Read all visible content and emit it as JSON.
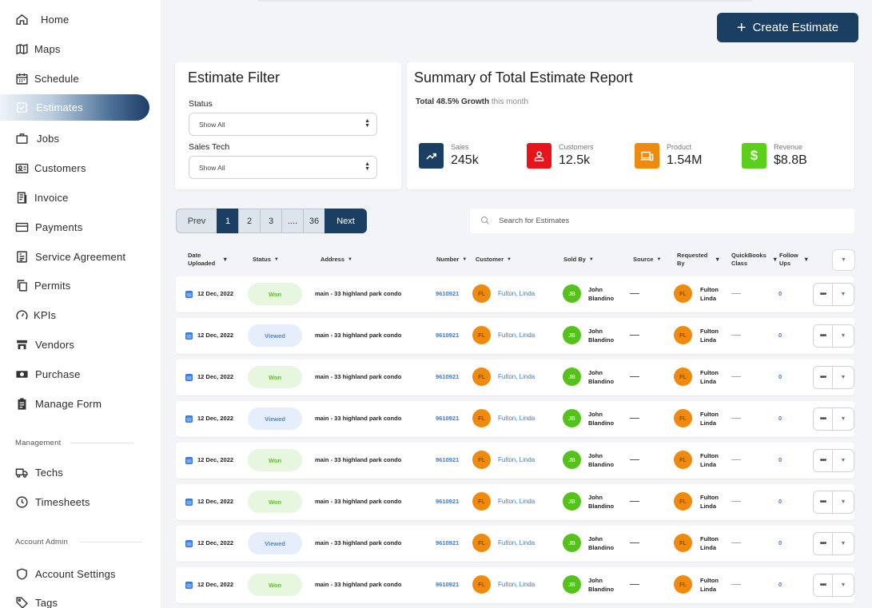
{
  "sidebar": {
    "items": [
      {
        "label": "Home",
        "icon": "home-icon"
      },
      {
        "label": "Maps",
        "icon": "map-icon"
      },
      {
        "label": "Schedule",
        "icon": "calendar-icon"
      },
      {
        "label": "Estimates",
        "icon": "estimate-icon",
        "active": true
      },
      {
        "label": "Jobs",
        "icon": "briefcase-icon"
      },
      {
        "label": "Customers",
        "icon": "id-card-icon"
      },
      {
        "label": "Invoice",
        "icon": "invoice-icon"
      },
      {
        "label": "Payments",
        "icon": "credit-card-icon"
      },
      {
        "label": "Service Agreement",
        "icon": "document-icon"
      },
      {
        "label": "Permits",
        "icon": "copy-icon"
      },
      {
        "label": "KPIs",
        "icon": "gauge-icon"
      },
      {
        "label": "Vendors",
        "icon": "store-icon"
      },
      {
        "label": "Purchase",
        "icon": "cash-icon"
      },
      {
        "label": "Manage Form",
        "icon": "clipboard-icon"
      }
    ],
    "management_title": "Management",
    "management_items": [
      {
        "label": "Techs",
        "icon": "truck-icon"
      },
      {
        "label": "Timesheets",
        "icon": "clock-icon"
      }
    ],
    "account_title": "Account Admin",
    "account_items": [
      {
        "label": "Account Settings",
        "icon": "shield-icon"
      },
      {
        "label": "Tags",
        "icon": "tag-icon"
      }
    ]
  },
  "header": {
    "create_button": "Create Estimate"
  },
  "filter": {
    "title": "Estimate Filter",
    "status_label": "Status",
    "status_value": "Show All",
    "tech_label": "Sales Tech",
    "tech_value": "Show All"
  },
  "summary": {
    "title": "Summary of Total Estimate Report",
    "growth_prefix": "Total 48.5% Growth",
    "growth_suffix": "this month",
    "stats": [
      {
        "label": "Sales",
        "value": "245k",
        "color": "#1b3f63",
        "icon": "trend-up-icon"
      },
      {
        "label": "Customers",
        "value": "12.5k",
        "color": "#e8141c",
        "icon": "user-icon"
      },
      {
        "label": "Product",
        "value": "1.54M",
        "color": "#f08a0c",
        "icon": "devices-icon"
      },
      {
        "label": "Revenue",
        "value": "$8.8B",
        "color": "#5ccf1c",
        "icon": "dollar-icon"
      }
    ]
  },
  "pagination": {
    "prev": "Prev",
    "pages": [
      "1",
      "2",
      "3",
      "....",
      "36"
    ],
    "active_page": "1",
    "next": "Next"
  },
  "search": {
    "placeholder": "Search for Estimates"
  },
  "table": {
    "headers": {
      "date_uploaded": "Date\nUploaded",
      "status": "Status",
      "address": "Address",
      "number": "Number",
      "customer": "Customer",
      "sold_by": "Sold By",
      "source": "Source",
      "requested_by": "Requested\nBy",
      "quickbooks_class": "QuickBooks\nClass",
      "follow_ups": "Follow\nUps"
    },
    "rows": [
      {
        "date": "12 Dec, 2022",
        "status": "Won",
        "address": "main - 33 highland park condo",
        "number": "9610921",
        "customer_initials": "FL",
        "customer": "Fulton, Linda",
        "sold_initials": "JB",
        "sold_first": "John",
        "sold_last": "Blandino",
        "source": "—",
        "req_initials": "FL",
        "req_first": "Fulton",
        "req_last": "Linda",
        "qb": "—",
        "follow": "0"
      },
      {
        "date": "12 Dec, 2022",
        "status": "Viewed",
        "address": "main - 33 highland park condo",
        "number": "9610921",
        "customer_initials": "FL",
        "customer": "Fulton, Linda",
        "sold_initials": "JB",
        "sold_first": "John",
        "sold_last": "Blandino",
        "source": "—",
        "req_initials": "FL",
        "req_first": "Fulton",
        "req_last": "Linda",
        "qb": "—",
        "follow": "0"
      },
      {
        "date": "12 Dec, 2022",
        "status": "Won",
        "address": "main - 33 highland park condo",
        "number": "9610921",
        "customer_initials": "FL",
        "customer": "Fulton, Linda",
        "sold_initials": "JB",
        "sold_first": "John",
        "sold_last": "Blandino",
        "source": "—",
        "req_initials": "FL",
        "req_first": "Fulton",
        "req_last": "Linda",
        "qb": "—",
        "follow": "0"
      },
      {
        "date": "12 Dec, 2022",
        "status": "Viewed",
        "address": "main - 33 highland park condo",
        "number": "9610921",
        "customer_initials": "FL",
        "customer": "Fulton, Linda",
        "sold_initials": "JB",
        "sold_first": "John",
        "sold_last": "Blandino",
        "source": "—",
        "req_initials": "FL",
        "req_first": "Fulton",
        "req_last": "Linda",
        "qb": "—",
        "follow": "0"
      },
      {
        "date": "12 Dec, 2022",
        "status": "Won",
        "address": "main - 33 highland park condo",
        "number": "9610921",
        "customer_initials": "FL",
        "customer": "Fulton, Linda",
        "sold_initials": "JB",
        "sold_first": "John",
        "sold_last": "Blandino",
        "source": "—",
        "req_initials": "FL",
        "req_first": "Fulton",
        "req_last": "Linda",
        "qb": "—",
        "follow": "0"
      },
      {
        "date": "12 Dec, 2022",
        "status": "Won",
        "address": "main - 33 highland park condo",
        "number": "9610921",
        "customer_initials": "FL",
        "customer": "Fulton, Linda",
        "sold_initials": "JB",
        "sold_first": "John",
        "sold_last": "Blandino",
        "source": "—",
        "req_initials": "FL",
        "req_first": "Fulton",
        "req_last": "Linda",
        "qb": "—",
        "follow": "0"
      },
      {
        "date": "12 Dec, 2022",
        "status": "Viewed",
        "address": "main - 33 highland park condo",
        "number": "9610921",
        "customer_initials": "FL",
        "customer": "Fulton, Linda",
        "sold_initials": "JB",
        "sold_first": "John",
        "sold_last": "Blandino",
        "source": "—",
        "req_initials": "FL",
        "req_first": "Fulton",
        "req_last": "Linda",
        "qb": "—",
        "follow": "0"
      },
      {
        "date": "12 Dec, 2022",
        "status": "Won",
        "address": "main - 33 highland park condo",
        "number": "9610921",
        "customer_initials": "FL",
        "customer": "Fulton, Linda",
        "sold_initials": "JB",
        "sold_first": "John",
        "sold_last": "Blandino",
        "source": "—",
        "req_initials": "FL",
        "req_first": "Fulton",
        "req_last": "Linda",
        "qb": "—",
        "follow": "0"
      }
    ]
  }
}
